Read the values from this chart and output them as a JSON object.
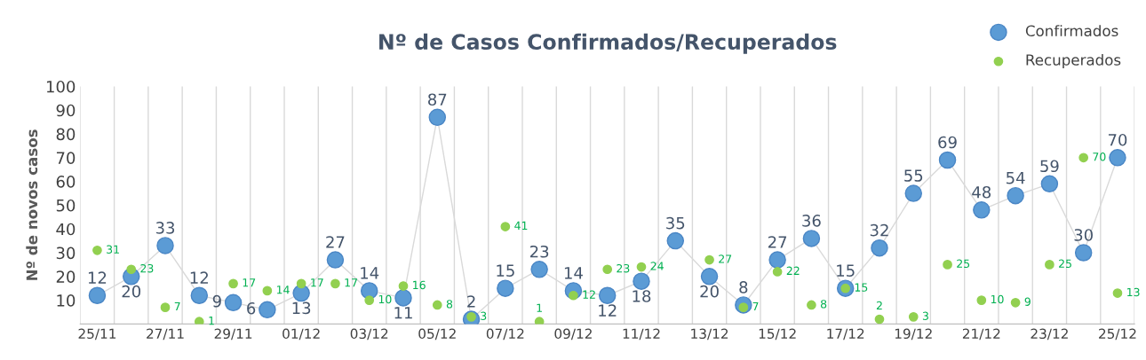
{
  "chart_data": {
    "type": "line",
    "title": "Nº de Casos Confirmados/Recuperados",
    "ylabel": "Nº de novos casos",
    "categories": [
      "25/11",
      null,
      "27/11",
      null,
      "29/11",
      null,
      "01/12",
      null,
      "03/12",
      null,
      "05/12",
      null,
      "07/12",
      null,
      "09/12",
      null,
      "11/12",
      null,
      "13/12",
      null,
      "15/12",
      null,
      "17/12",
      null,
      "19/12",
      null,
      "21/12",
      null,
      "23/12",
      null,
      "25/12"
    ],
    "series": [
      {
        "name": "Confirmados",
        "color": "#5b9bd5",
        "marker": "circle",
        "values": [
          12,
          20,
          33,
          12,
          9,
          6,
          13,
          27,
          14,
          11,
          87,
          2,
          15,
          23,
          14,
          12,
          18,
          35,
          20,
          8,
          27,
          36,
          15,
          32,
          55,
          69,
          48,
          54,
          59,
          30,
          70
        ]
      },
      {
        "name": "Recuperados",
        "type": "scatter",
        "color": "#92d050",
        "marker": "circle",
        "values": [
          31,
          23,
          7,
          1,
          17,
          14,
          17,
          17,
          10,
          16,
          8,
          3,
          41,
          1,
          12,
          23,
          24,
          null,
          27,
          7,
          22,
          8,
          15,
          2,
          3,
          25,
          10,
          9,
          25,
          70,
          13
        ]
      }
    ],
    "ylim": [
      0,
      100
    ],
    "yticks": [
      10,
      20,
      30,
      40,
      50,
      60,
      70,
      80,
      90,
      100
    ],
    "grid": "x",
    "legend": "top right",
    "data_labels": true
  }
}
